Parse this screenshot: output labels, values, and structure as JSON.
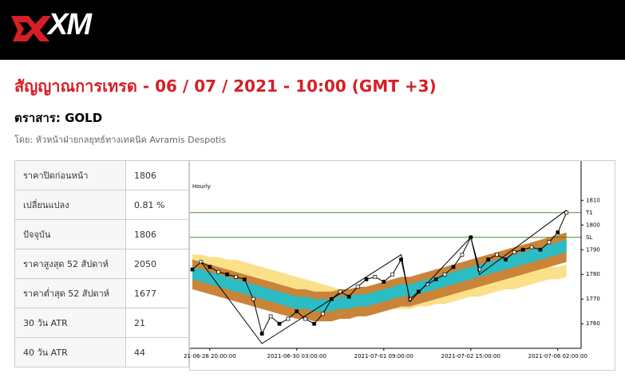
{
  "header": {
    "logo": "XM"
  },
  "title": "สัญญาณการเทรด - 06 / 07 / 2021 - 10:00 (GMT +3)",
  "instrument": "ตราสาร: GOLD",
  "author": "โดย: หัวหน้าฝ่ายกลยุทธ์ทางเทคนิค Avramis Despotis",
  "table": {
    "rows": [
      [
        "ราคาปิดก่อนหน้า",
        "1806"
      ],
      [
        "เปลี่ยนแปลง",
        "0.81 %"
      ],
      [
        "ปัจจุบัน",
        "1806"
      ],
      [
        "ราคาสูงสุด 52 สัปดาห์",
        "2050"
      ],
      [
        "ราคาต่ำสุด 52 สัปดาห์",
        "1677"
      ],
      [
        "30 วัน ATR",
        "21"
      ],
      [
        "40 วัน ATR",
        "44"
      ]
    ]
  },
  "chart_data": {
    "type": "line",
    "title": "Hourly",
    "categories": [
      null,
      null,
      "21-06-28 20:00:00",
      null,
      null,
      null,
      null,
      null,
      null,
      null,
      null,
      null,
      "2021-06-30 03:00:00",
      null,
      null,
      null,
      null,
      null,
      null,
      null,
      null,
      null,
      "2021-07-01 09:00:00",
      null,
      null,
      null,
      null,
      null,
      null,
      null,
      null,
      null,
      "2021-07-02 15:00:00",
      null,
      null,
      null,
      null,
      null,
      null,
      null,
      null,
      null,
      "2021-07-06 02:00:00",
      null
    ],
    "series": [
      {
        "name": "GOLD",
        "color": "#000000",
        "values": [
          1782,
          1785,
          1783,
          1781,
          1780,
          1779,
          1778,
          1770,
          1756,
          1763,
          1760,
          1762,
          1765,
          1762,
          1760,
          1764,
          1770,
          1773,
          1771,
          1775,
          1778,
          1779,
          1777,
          1780,
          1786,
          1770,
          1773,
          1776,
          1778,
          1780,
          1783,
          1788,
          1795,
          1782,
          1786,
          1788,
          1786,
          1789,
          1790,
          1791,
          1790,
          1793,
          1797,
          1805
        ]
      }
    ],
    "bands": [
      {
        "color": "#fbe08a",
        "lower": [
          1783,
          1783,
          1782,
          1782,
          1781,
          1781,
          1780,
          1779,
          1778,
          1777,
          1776,
          1775,
          1774,
          1773,
          1772,
          1771,
          1770,
          1769,
          1768,
          1767,
          1767,
          1766,
          1766,
          1766,
          1766,
          1766,
          1767,
          1767,
          1768,
          1768,
          1769,
          1770,
          1771,
          1771,
          1772,
          1773,
          1774,
          1774,
          1775,
          1776,
          1777,
          1778,
          1778,
          1779
        ],
        "upper": [
          1788,
          1788,
          1787,
          1787,
          1786,
          1786,
          1785,
          1784,
          1783,
          1782,
          1781,
          1780,
          1779,
          1778,
          1777,
          1776,
          1775,
          1774,
          1773,
          1772,
          1772,
          1771,
          1771,
          1771,
          1771,
          1771,
          1772,
          1772,
          1773,
          1773,
          1774,
          1775,
          1776,
          1776,
          1777,
          1778,
          1779,
          1779,
          1780,
          1781,
          1782,
          1783,
          1783,
          1784
        ]
      },
      {
        "color": "#c98439",
        "lower": [
          1774,
          1773,
          1772,
          1771,
          1770,
          1769,
          1768,
          1767,
          1766,
          1765,
          1764,
          1763,
          1762,
          1762,
          1761,
          1761,
          1761,
          1762,
          1762,
          1763,
          1763,
          1764,
          1765,
          1766,
          1767,
          1767,
          1768,
          1769,
          1770,
          1771,
          1772,
          1773,
          1774,
          1775,
          1776,
          1777,
          1778,
          1779,
          1780,
          1781,
          1782,
          1783,
          1784,
          1785
        ],
        "upper": [
          1786,
          1785,
          1784,
          1783,
          1782,
          1781,
          1780,
          1779,
          1778,
          1777,
          1776,
          1775,
          1774,
          1774,
          1773,
          1773,
          1773,
          1774,
          1774,
          1775,
          1775,
          1776,
          1777,
          1778,
          1779,
          1779,
          1780,
          1781,
          1782,
          1783,
          1784,
          1785,
          1786,
          1787,
          1788,
          1789,
          1790,
          1791,
          1792,
          1793,
          1794,
          1795,
          1796,
          1797
        ]
      },
      {
        "color": "#2bbcc4",
        "lower": [
          1778,
          1777,
          1776,
          1775,
          1774,
          1773,
          1772,
          1771,
          1770,
          1769,
          1768,
          1767,
          1766,
          1766,
          1765,
          1765,
          1765,
          1766,
          1766,
          1767,
          1767,
          1768,
          1769,
          1770,
          1771,
          1771,
          1772,
          1773,
          1774,
          1775,
          1776,
          1777,
          1778,
          1779,
          1780,
          1781,
          1782,
          1783,
          1784,
          1785,
          1786,
          1787,
          1788,
          1789
        ],
        "upper": [
          1783,
          1782,
          1781,
          1780,
          1779,
          1778,
          1777,
          1776,
          1775,
          1774,
          1773,
          1772,
          1771,
          1771,
          1770,
          1770,
          1770,
          1771,
          1771,
          1772,
          1772,
          1773,
          1774,
          1775,
          1776,
          1776,
          1777,
          1778,
          1779,
          1780,
          1781,
          1782,
          1783,
          1784,
          1785,
          1786,
          1787,
          1788,
          1789,
          1790,
          1791,
          1792,
          1793,
          1794
        ]
      }
    ],
    "zigzag": {
      "color": "#000000",
      "x": [
        1,
        8,
        24,
        25,
        32,
        33,
        43
      ],
      "values": [
        1785,
        1752,
        1788,
        1769,
        1795,
        1780,
        1806
      ]
    },
    "levels": [
      {
        "value": 1805,
        "label": "T1",
        "color": "#4a8a2a"
      },
      {
        "value": 1795,
        "label": "SL",
        "color": "#4a8a2a"
      }
    ],
    "ylim": [
      1752,
      1823
    ],
    "yticks": [
      1760,
      1770,
      1780,
      1790,
      1800,
      1810
    ]
  }
}
